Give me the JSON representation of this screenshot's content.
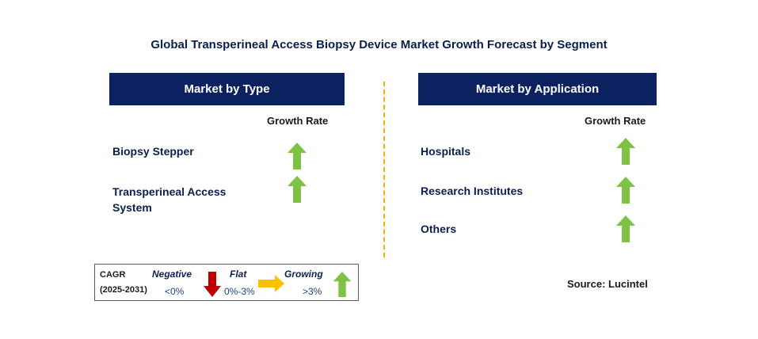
{
  "title": "Global Transperineal Access Biopsy Device Market Growth Forecast by Segment",
  "left_panel": {
    "header": "Market by Type",
    "growth_label": "Growth Rate",
    "items": [
      {
        "label_line1": "Biopsy Stepper",
        "label_line2": "",
        "trend": "growing"
      },
      {
        "label_line1": "Transperineal Access",
        "label_line2": "System",
        "trend": "growing"
      }
    ]
  },
  "right_panel": {
    "header": "Market by Application",
    "growth_label": "Growth Rate",
    "items": [
      {
        "label": "Hospitals",
        "trend": "growing"
      },
      {
        "label": "Research Institutes",
        "trend": "growing"
      },
      {
        "label": "Others",
        "trend": "growing"
      }
    ]
  },
  "legend": {
    "cagr_label": "CAGR",
    "period": "(2025-2031)",
    "negative_label": "Negative",
    "negative_value": "<0%",
    "flat_label": "Flat",
    "flat_value": "0%-3%",
    "growing_label": "Growing",
    "growing_value": ">3%"
  },
  "source": "Source: Lucintel",
  "colors": {
    "header_bg": "#0b2160",
    "growing_arrow": "#7dc242",
    "negative_arrow": "#c00000",
    "flat_arrow": "#ffc000",
    "divider": "#f0b400"
  }
}
